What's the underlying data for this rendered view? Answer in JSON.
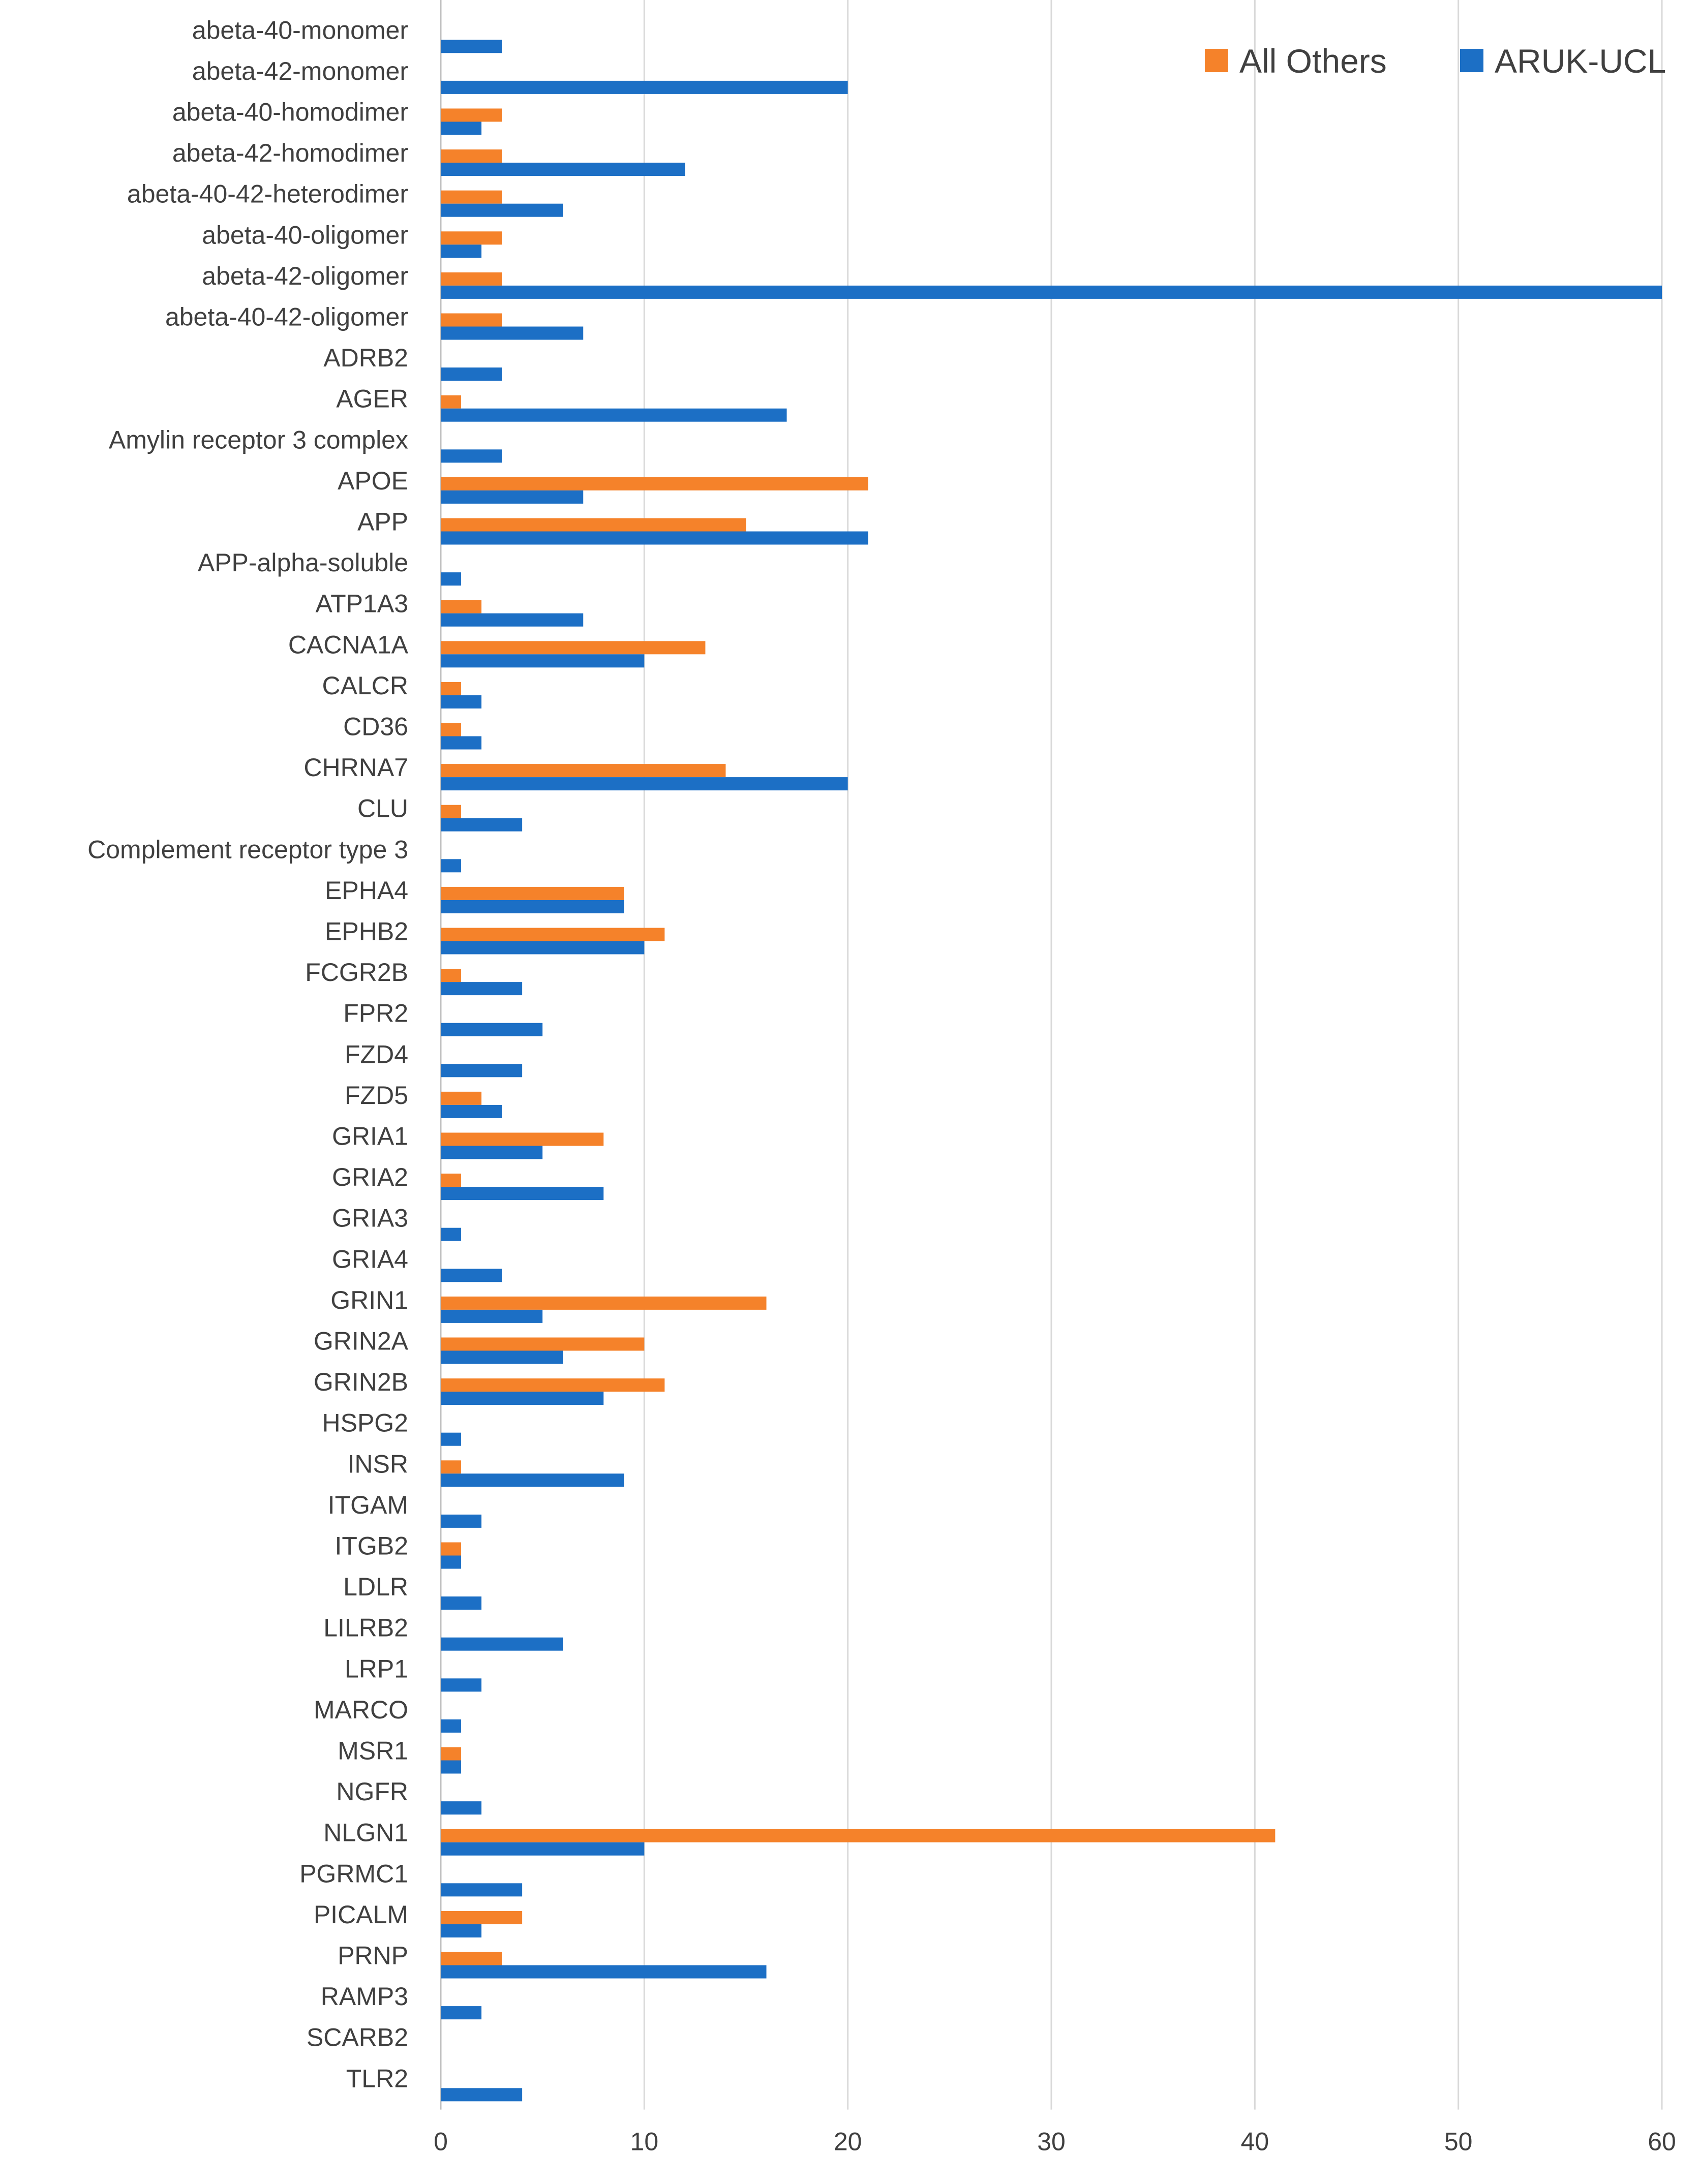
{
  "chart_data": {
    "type": "bar",
    "orientation": "horizontal",
    "title": "",
    "xlabel": "",
    "ylabel": "",
    "xlim": [
      0,
      60
    ],
    "x_ticks": [
      0,
      10,
      20,
      30,
      40,
      50,
      60
    ],
    "grid": "vertical",
    "legend_position": "top-right",
    "categories": [
      "abeta-40-monomer",
      "abeta-42-monomer",
      "abeta-40-homodimer",
      "abeta-42-homodimer",
      "abeta-40-42-heterodimer",
      "abeta-40-oligomer",
      "abeta-42-oligomer",
      "abeta-40-42-oligomer",
      "ADRB2",
      "AGER",
      "Amylin receptor 3 complex",
      "APOE",
      "APP",
      "APP-alpha-soluble",
      "ATP1A3",
      "CACNA1A",
      "CALCR",
      "CD36",
      "CHRNA7",
      "CLU",
      "Complement receptor type 3",
      "EPHA4",
      "EPHB2",
      "FCGR2B",
      "FPR2",
      "FZD4",
      "FZD5",
      "GRIA1",
      "GRIA2",
      "GRIA3",
      "GRIA4",
      "GRIN1",
      "GRIN2A",
      "GRIN2B",
      "HSPG2",
      "INSR",
      "ITGAM",
      "ITGB2",
      "LDLR",
      "LILRB2",
      "LRP1",
      "MARCO",
      "MSR1",
      "NGFR",
      "NLGN1",
      "PGRMC1",
      "PICALM",
      "PRNP",
      "RAMP3",
      "SCARB2",
      "TLR2"
    ],
    "series": [
      {
        "name": "All Others",
        "color": "#F5822A",
        "values": [
          0,
          0,
          3,
          3,
          3,
          3,
          3,
          3,
          0,
          1,
          0,
          21,
          15,
          0,
          2,
          13,
          1,
          1,
          14,
          1,
          0,
          9,
          11,
          1,
          0,
          0,
          2,
          8,
          1,
          0,
          0,
          16,
          10,
          11,
          0,
          1,
          0,
          1,
          0,
          0,
          0,
          0,
          1,
          0,
          41,
          0,
          4,
          3,
          0,
          0,
          0
        ]
      },
      {
        "name": "ARUK-UCL",
        "color": "#1C6FC5",
        "values": [
          3,
          20,
          2,
          12,
          6,
          2,
          60,
          7,
          3,
          17,
          3,
          7,
          21,
          1,
          7,
          10,
          2,
          2,
          20,
          4,
          1,
          9,
          10,
          4,
          5,
          4,
          3,
          5,
          8,
          1,
          3,
          5,
          6,
          8,
          1,
          9,
          2,
          1,
          2,
          6,
          2,
          1,
          1,
          2,
          10,
          4,
          2,
          16,
          2,
          0,
          4
        ]
      }
    ]
  }
}
